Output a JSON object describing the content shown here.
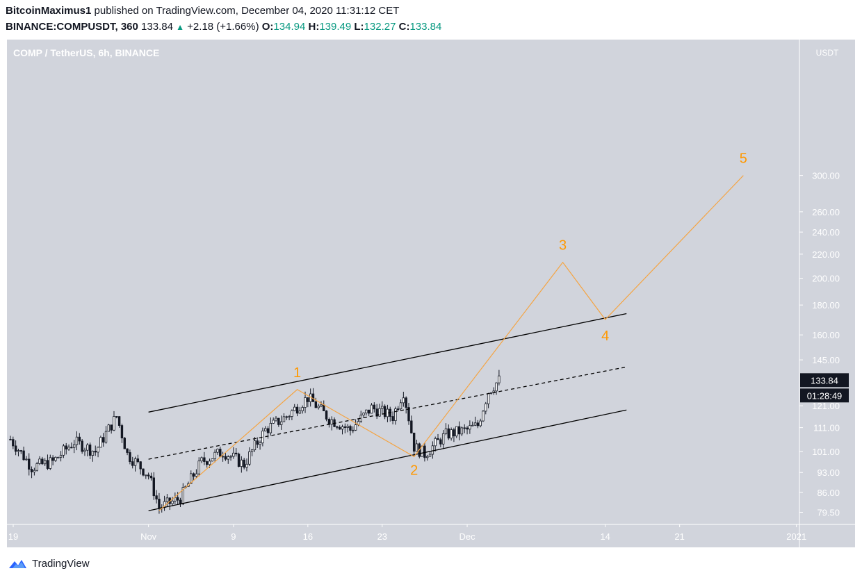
{
  "header": {
    "author": "BitcoinMaximus1",
    "published_text": "published on TradingView.com, December 04, 2020 11:31:12 CET",
    "symbol": "BINANCE:COMPUSDT, 360",
    "last": "133.84",
    "arrow": "▲",
    "change": "+2.18 (+1.66%)",
    "open_label": "O:",
    "open": "134.94",
    "high_label": "H:",
    "high": "139.49",
    "low_label": "L:",
    "low": "132.27",
    "close_label": "C:",
    "close": "133.84"
  },
  "chart_data": {
    "type": "candlestick",
    "title": "COMP / TetherUS, 6h, BINANCE",
    "currency": "USDT",
    "scale": "log",
    "ylim": [
      78,
      310
    ],
    "y_ticks": [
      79.5,
      86.0,
      93.0,
      101.0,
      111.0,
      121.0,
      145.0,
      160.0,
      180.0,
      200.0,
      220.0,
      240.0,
      260.0,
      300.0
    ],
    "y_tick_labels": [
      "79.50",
      "86.00",
      "93.00",
      "101.00",
      "111.00",
      "121.00",
      "145.00",
      "160.00",
      "180.00",
      "200.00",
      "220.00",
      "240.00",
      "260.00",
      "300.00"
    ],
    "x_ticks": [
      "2020-10-19",
      "2020-11-01",
      "2020-11-09",
      "2020-11-16",
      "2020-11-23",
      "2020-12-01",
      "2020-12-14",
      "2020-12-21",
      "2021-01-01"
    ],
    "x_tick_labels": [
      "19",
      "Nov",
      "9",
      "16",
      "23",
      "Dec",
      "14",
      "21",
      "2021"
    ],
    "last_price_label": "133.84",
    "countdown_label": "01:28:49",
    "price_path": [
      [
        "2020-10-19",
        106
      ],
      [
        "2020-10-21",
        95
      ],
      [
        "2020-10-23",
        97
      ],
      [
        "2020-10-25",
        105
      ],
      [
        "2020-10-27",
        101
      ],
      [
        "2020-10-29",
        116
      ],
      [
        "2020-10-30",
        100
      ],
      [
        "2020-11-01",
        92
      ],
      [
        "2020-11-02",
        81
      ],
      [
        "2020-11-04",
        84
      ],
      [
        "2020-11-06",
        97
      ],
      [
        "2020-11-08",
        101
      ],
      [
        "2020-11-10",
        96
      ],
      [
        "2020-11-12",
        110
      ],
      [
        "2020-11-14",
        116
      ],
      [
        "2020-11-16",
        125
      ],
      [
        "2020-11-18",
        115
      ],
      [
        "2020-11-20",
        110
      ],
      [
        "2020-11-22",
        120
      ],
      [
        "2020-11-24",
        116
      ],
      [
        "2020-11-25",
        128
      ],
      [
        "2020-11-26",
        103
      ],
      [
        "2020-11-27",
        100
      ],
      [
        "2020-11-29",
        108
      ],
      [
        "2020-12-01",
        110
      ],
      [
        "2020-12-02",
        112
      ],
      [
        "2020-12-03",
        128
      ],
      [
        "2020-12-04",
        133.84
      ]
    ],
    "channel": {
      "upper": [
        [
          "2020-11-01",
          118
        ],
        [
          "2020-12-16",
          174
        ]
      ],
      "middle": [
        [
          "2020-11-01",
          98
        ],
        [
          "2020-12-16",
          141
        ]
      ],
      "lower": [
        [
          "2020-11-01",
          80
        ],
        [
          "2020-12-16",
          119
        ]
      ]
    },
    "wave_projection": [
      {
        "label": "",
        "date": "2020-11-02",
        "price": 80
      },
      {
        "label": "1",
        "date": "2020-11-15",
        "price": 129
      },
      {
        "label": "2",
        "date": "2020-11-26",
        "price": 99
      },
      {
        "label": "3",
        "date": "2020-12-10",
        "price": 213
      },
      {
        "label": "4",
        "date": "2020-12-14",
        "price": 170
      },
      {
        "label": "5",
        "date": "2020-12-27",
        "price": 300
      }
    ],
    "colors": {
      "background": "#d1d4dc",
      "candles": "#131722",
      "wave": "#f5a442",
      "wave_label": "#ff9800",
      "channel": "#000000",
      "axis_text": "#ffffff",
      "price_badge": "#131722"
    }
  },
  "footer": {
    "brand": "TradingView",
    "logo_icon": "tradingview-cloud-icon"
  }
}
